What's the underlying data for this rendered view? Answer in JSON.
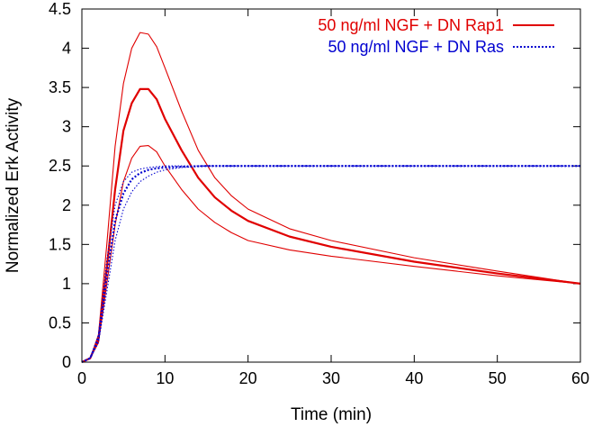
{
  "chart_data": {
    "type": "line",
    "xlabel": "Time (min)",
    "ylabel": "Normalized Erk Activity",
    "xlim": [
      0,
      60
    ],
    "ylim": [
      0,
      4.5
    ],
    "xticks": [
      0,
      10,
      20,
      30,
      40,
      50,
      60
    ],
    "xtick_labels": [
      "0",
      "10",
      "20",
      "30",
      "40",
      "50",
      "60"
    ],
    "yticks": [
      0,
      0.5,
      1,
      1.5,
      2,
      2.5,
      3,
      3.5,
      4,
      4.5
    ],
    "ytick_labels": [
      "0",
      "0.5",
      "1",
      "1.5",
      "2",
      "2.5",
      "3",
      "3.5",
      "4",
      "4.5"
    ],
    "grid": false,
    "legend_position": "top-right",
    "colors": {
      "rap1": "#e00000",
      "ras": "#0000d0"
    },
    "legend": [
      {
        "label": "50 ng/ml NGF + DN Rap1",
        "style": "solid",
        "color": "#e00000"
      },
      {
        "label": "50 ng/ml NGF + DN Ras",
        "style": "dotted",
        "color": "#0000d0"
      }
    ],
    "series": [
      {
        "name": "50 ng/ml NGF + DN Rap1",
        "style": "solid",
        "width": "thick",
        "color": "#e00000",
        "x": [
          0,
          1,
          2,
          3,
          4,
          5,
          6,
          7,
          8,
          9,
          10,
          12,
          14,
          16,
          18,
          20,
          25,
          30,
          40,
          50,
          60
        ],
        "y": [
          0,
          0.05,
          0.3,
          1.2,
          2.2,
          2.95,
          3.3,
          3.48,
          3.48,
          3.35,
          3.1,
          2.7,
          2.35,
          2.1,
          1.93,
          1.8,
          1.6,
          1.47,
          1.28,
          1.13,
          1.0
        ]
      },
      {
        "name": "DN Rap1 upper bound",
        "style": "solid",
        "width": "thin",
        "color": "#e00000",
        "x": [
          0,
          1,
          2,
          3,
          4,
          5,
          6,
          7,
          8,
          9,
          10,
          12,
          14,
          16,
          18,
          20,
          25,
          30,
          40,
          50,
          60
        ],
        "y": [
          0,
          0.05,
          0.35,
          1.5,
          2.75,
          3.55,
          4.0,
          4.2,
          4.18,
          4.02,
          3.75,
          3.2,
          2.7,
          2.35,
          2.12,
          1.95,
          1.7,
          1.55,
          1.33,
          1.16,
          1.0
        ]
      },
      {
        "name": "DN Rap1 lower bound",
        "style": "solid",
        "width": "thin",
        "color": "#e00000",
        "x": [
          0,
          1,
          2,
          3,
          4,
          5,
          6,
          7,
          8,
          9,
          10,
          12,
          14,
          16,
          18,
          20,
          25,
          30,
          40,
          50,
          60
        ],
        "y": [
          0,
          0.05,
          0.25,
          1.0,
          1.75,
          2.3,
          2.6,
          2.75,
          2.76,
          2.68,
          2.5,
          2.2,
          1.95,
          1.78,
          1.65,
          1.55,
          1.43,
          1.35,
          1.22,
          1.1,
          1.0
        ]
      },
      {
        "name": "50 ng/ml NGF + DN Ras",
        "style": "dotted",
        "width": "thick",
        "color": "#0000d0",
        "x": [
          0,
          1,
          2,
          3,
          4,
          5,
          6,
          7,
          8,
          9,
          10,
          12,
          15,
          20,
          30,
          40,
          50,
          60
        ],
        "y": [
          0,
          0.05,
          0.3,
          1.1,
          1.8,
          2.15,
          2.33,
          2.41,
          2.45,
          2.47,
          2.48,
          2.49,
          2.5,
          2.5,
          2.5,
          2.5,
          2.5,
          2.5
        ]
      },
      {
        "name": "DN Ras upper bound",
        "style": "dotted",
        "width": "thin",
        "color": "#0000d0",
        "x": [
          0,
          1,
          2,
          3,
          4,
          5,
          6,
          7,
          8,
          9,
          10,
          12,
          15,
          20,
          30,
          40,
          50,
          60
        ],
        "y": [
          0,
          0.05,
          0.35,
          1.3,
          2.0,
          2.3,
          2.42,
          2.46,
          2.48,
          2.49,
          2.5,
          2.5,
          2.5,
          2.5,
          2.5,
          2.5,
          2.5,
          2.5
        ]
      },
      {
        "name": "DN Ras lower bound",
        "style": "dotted",
        "width": "thin",
        "color": "#0000d0",
        "x": [
          0,
          1,
          2,
          3,
          4,
          5,
          6,
          7,
          8,
          9,
          10,
          12,
          15,
          20,
          30,
          40,
          50,
          60
        ],
        "y": [
          0,
          0.05,
          0.25,
          0.9,
          1.55,
          1.95,
          2.17,
          2.3,
          2.37,
          2.42,
          2.45,
          2.48,
          2.5,
          2.5,
          2.5,
          2.5,
          2.5,
          2.5
        ]
      }
    ]
  }
}
